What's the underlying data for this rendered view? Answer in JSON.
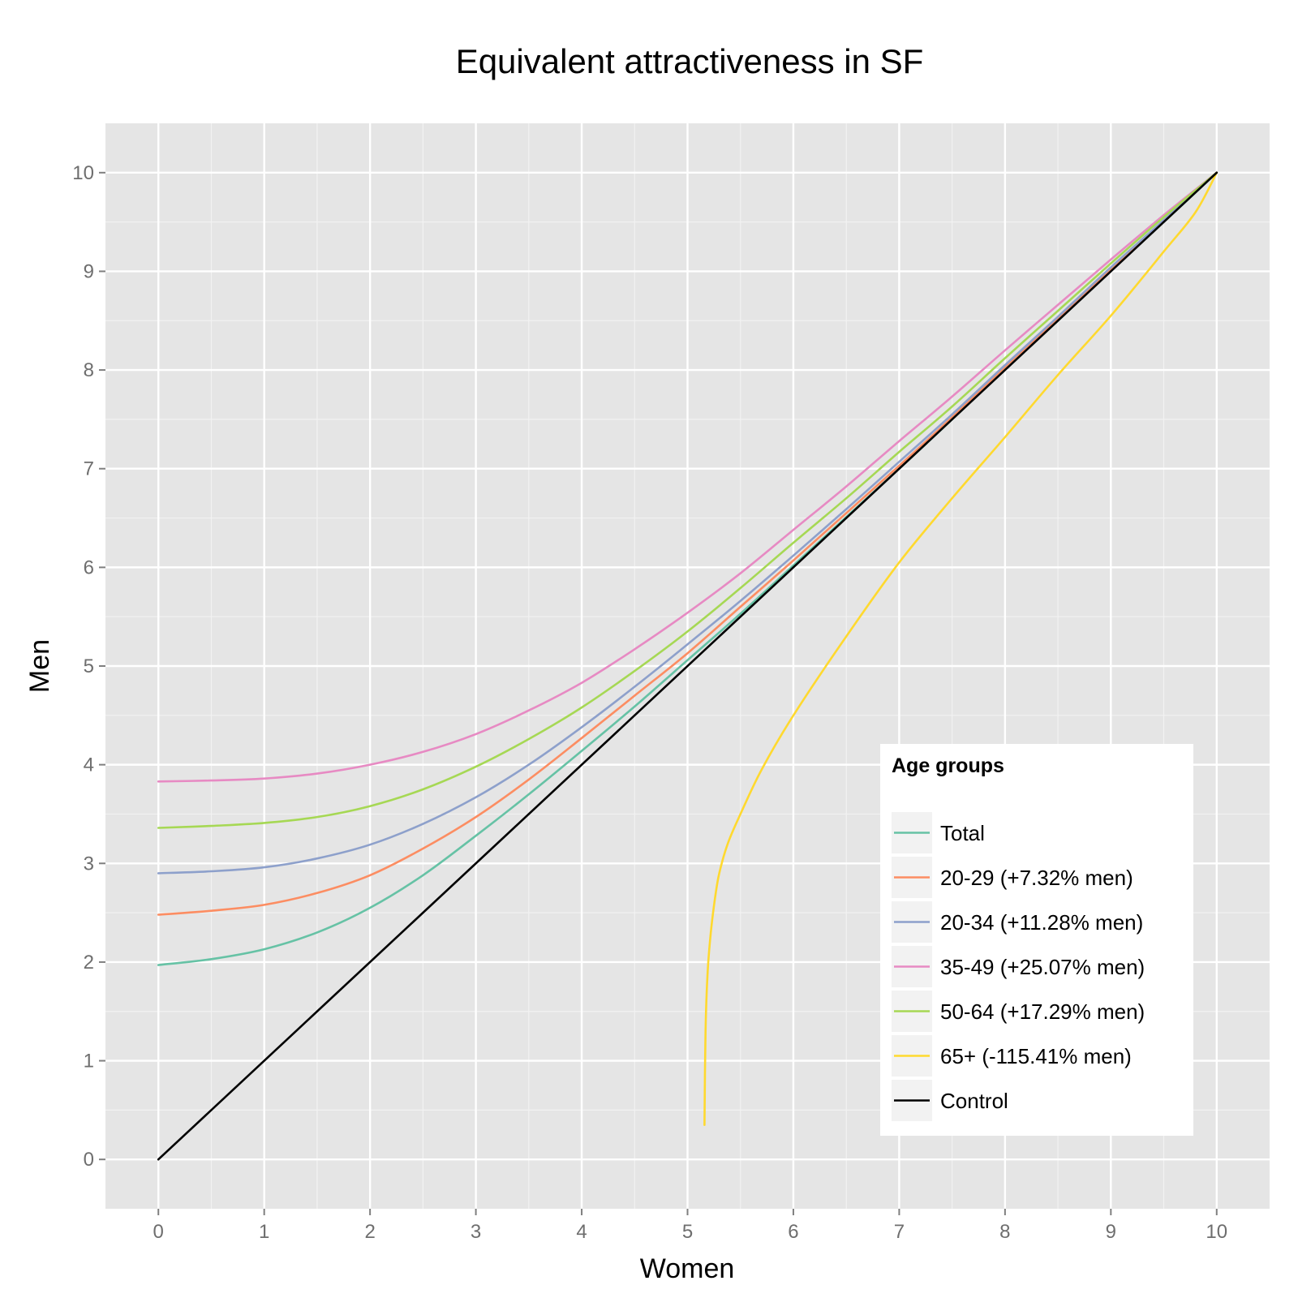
{
  "chart_data": {
    "type": "line",
    "title": "Equivalent attractiveness in SF",
    "xlabel": "Women",
    "ylabel": "Men",
    "xlim": [
      -0.5,
      10.5
    ],
    "ylim": [
      -0.5,
      10.5
    ],
    "x_ticks": [
      "0",
      "1",
      "2",
      "3",
      "4",
      "5",
      "6",
      "7",
      "8",
      "9",
      "10"
    ],
    "y_ticks": [
      "0",
      "1",
      "2",
      "3",
      "4",
      "5",
      "6",
      "7",
      "8",
      "9",
      "10"
    ],
    "grid": true,
    "legend": {
      "title": "Age groups",
      "position": "inside-bottom-right"
    },
    "series": [
      {
        "name": "Total",
        "color": "#66c2a5",
        "x": [
          0,
          0.5,
          1,
          1.5,
          2,
          2.5,
          3,
          3.5,
          4,
          4.5,
          5,
          5.5,
          6,
          6.5,
          7,
          7.5,
          8,
          8.5,
          9,
          9.5,
          10
        ],
        "y": [
          1.97,
          2.03,
          2.13,
          2.3,
          2.55,
          2.88,
          3.28,
          3.7,
          4.14,
          4.59,
          5.06,
          5.53,
          6.02,
          6.51,
          7.0,
          7.5,
          8.01,
          8.5,
          9.01,
          9.5,
          10
        ]
      },
      {
        "name": "20-29 (+7.32% men)",
        "color": "#fc8d62",
        "x": [
          0,
          0.5,
          1,
          1.5,
          2,
          2.5,
          3,
          3.5,
          4,
          4.5,
          5,
          5.5,
          6,
          6.5,
          7,
          7.5,
          8,
          8.5,
          9,
          9.5,
          10
        ],
        "y": [
          2.48,
          2.52,
          2.58,
          2.7,
          2.88,
          3.15,
          3.47,
          3.85,
          4.27,
          4.7,
          5.13,
          5.6,
          6.07,
          6.55,
          7.03,
          7.52,
          8.03,
          8.52,
          9.02,
          9.51,
          10
        ]
      },
      {
        "name": "20-34 (+11.28% men)",
        "color": "#8da0cb",
        "x": [
          0,
          0.5,
          1,
          1.5,
          2,
          2.5,
          3,
          3.5,
          4,
          4.5,
          5,
          5.5,
          6,
          6.5,
          7,
          7.5,
          8,
          8.5,
          9,
          9.5,
          10
        ],
        "y": [
          2.9,
          2.92,
          2.96,
          3.05,
          3.19,
          3.4,
          3.67,
          4.0,
          4.38,
          4.79,
          5.22,
          5.66,
          6.12,
          6.59,
          7.07,
          7.55,
          8.05,
          8.54,
          9.04,
          9.52,
          10
        ]
      },
      {
        "name": "35-49 (+25.07% men)",
        "color": "#e78ac3",
        "x": [
          0,
          0.5,
          1,
          1.5,
          2,
          2.5,
          3,
          3.5,
          4,
          4.5,
          5,
          5.5,
          6,
          6.5,
          7,
          7.5,
          8,
          8.5,
          9,
          9.5,
          10
        ],
        "y": [
          3.83,
          3.84,
          3.86,
          3.91,
          4.0,
          4.13,
          4.31,
          4.55,
          4.83,
          5.17,
          5.54,
          5.94,
          6.38,
          6.82,
          7.28,
          7.73,
          8.2,
          8.66,
          9.12,
          9.57,
          10
        ]
      },
      {
        "name": "50-64 (+17.29% men)",
        "color": "#a6d854",
        "x": [
          0,
          0.5,
          1,
          1.5,
          2,
          2.5,
          3,
          3.5,
          4,
          4.5,
          5,
          5.5,
          6,
          6.5,
          7,
          7.5,
          8,
          8.5,
          9,
          9.5,
          10
        ],
        "y": [
          3.36,
          3.38,
          3.41,
          3.47,
          3.58,
          3.75,
          3.98,
          4.26,
          4.58,
          4.95,
          5.35,
          5.79,
          6.25,
          6.7,
          7.17,
          7.63,
          8.12,
          8.6,
          9.08,
          9.55,
          10
        ]
      },
      {
        "name": "65+ (-115.41% men)",
        "color": "#ffd92f",
        "x": [
          5.16,
          5.17,
          5.19,
          5.22,
          5.26,
          5.3,
          5.38,
          5.5,
          5.7,
          6.0,
          6.5,
          7.0,
          7.5,
          8.0,
          8.5,
          9.0,
          9.5,
          9.8,
          10
        ],
        "y": [
          0.35,
          1.3,
          1.9,
          2.3,
          2.65,
          2.9,
          3.2,
          3.5,
          3.95,
          4.5,
          5.3,
          6.05,
          6.7,
          7.32,
          7.95,
          8.55,
          9.2,
          9.6,
          10
        ]
      },
      {
        "name": "Control",
        "color": "#000000",
        "x": [
          0,
          10
        ],
        "y": [
          0,
          10
        ]
      }
    ]
  }
}
